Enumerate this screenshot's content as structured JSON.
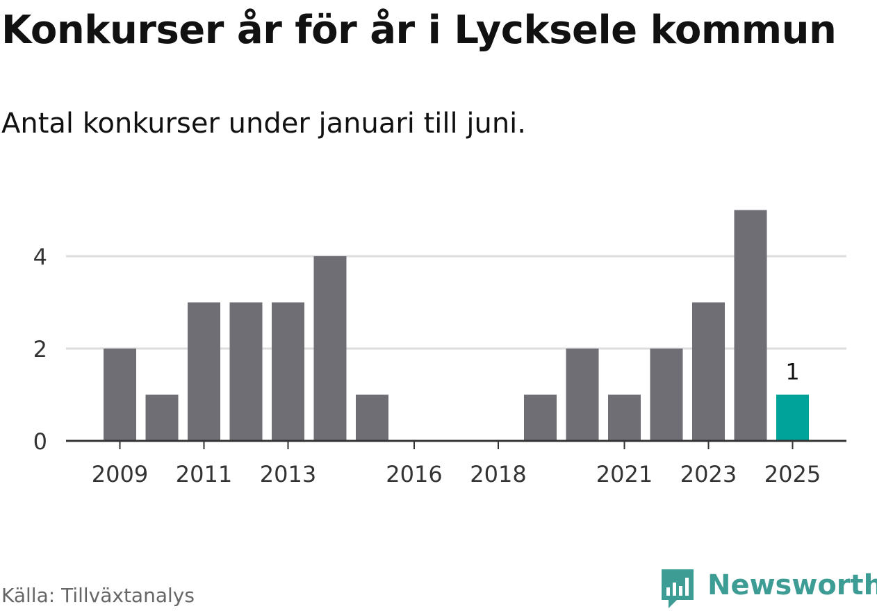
{
  "title": "Konkurser år för år i Lycksele kommun",
  "subtitle": "Antal konkurser under januari till juni.",
  "source": "Källa: Tillväxtanalys",
  "brand": {
    "name": "Newsworthy",
    "icon": "newsworthy-logo-icon",
    "color": "#3d9c94"
  },
  "chart_data": {
    "type": "bar",
    "title": "Konkurser år för år i Lycksele kommun",
    "subtitle": "Antal konkurser under januari till juni.",
    "xlabel": "",
    "ylabel": "",
    "categories": [
      "2009",
      "2010",
      "2011",
      "2012",
      "2013",
      "2014",
      "2015",
      "2016",
      "2017",
      "2018",
      "2019",
      "2020",
      "2021",
      "2022",
      "2023",
      "2024",
      "2025"
    ],
    "values": [
      2,
      1,
      3,
      3,
      3,
      4,
      1,
      0,
      0,
      0,
      1,
      2,
      1,
      2,
      3,
      5,
      1
    ],
    "x_tick_labels": [
      "2009",
      "2011",
      "2013",
      "2016",
      "2018",
      "2021",
      "2023",
      "2025"
    ],
    "y_ticks": [
      0,
      2,
      4
    ],
    "ylim": [
      0,
      5
    ],
    "grid": true,
    "highlight_index": 16,
    "highlight_label": "1",
    "colors": {
      "bar": "#6f6e74",
      "highlight": "#00a39a",
      "grid": "#dddddd",
      "axis": "#333333",
      "tick_text": "#333333"
    }
  }
}
